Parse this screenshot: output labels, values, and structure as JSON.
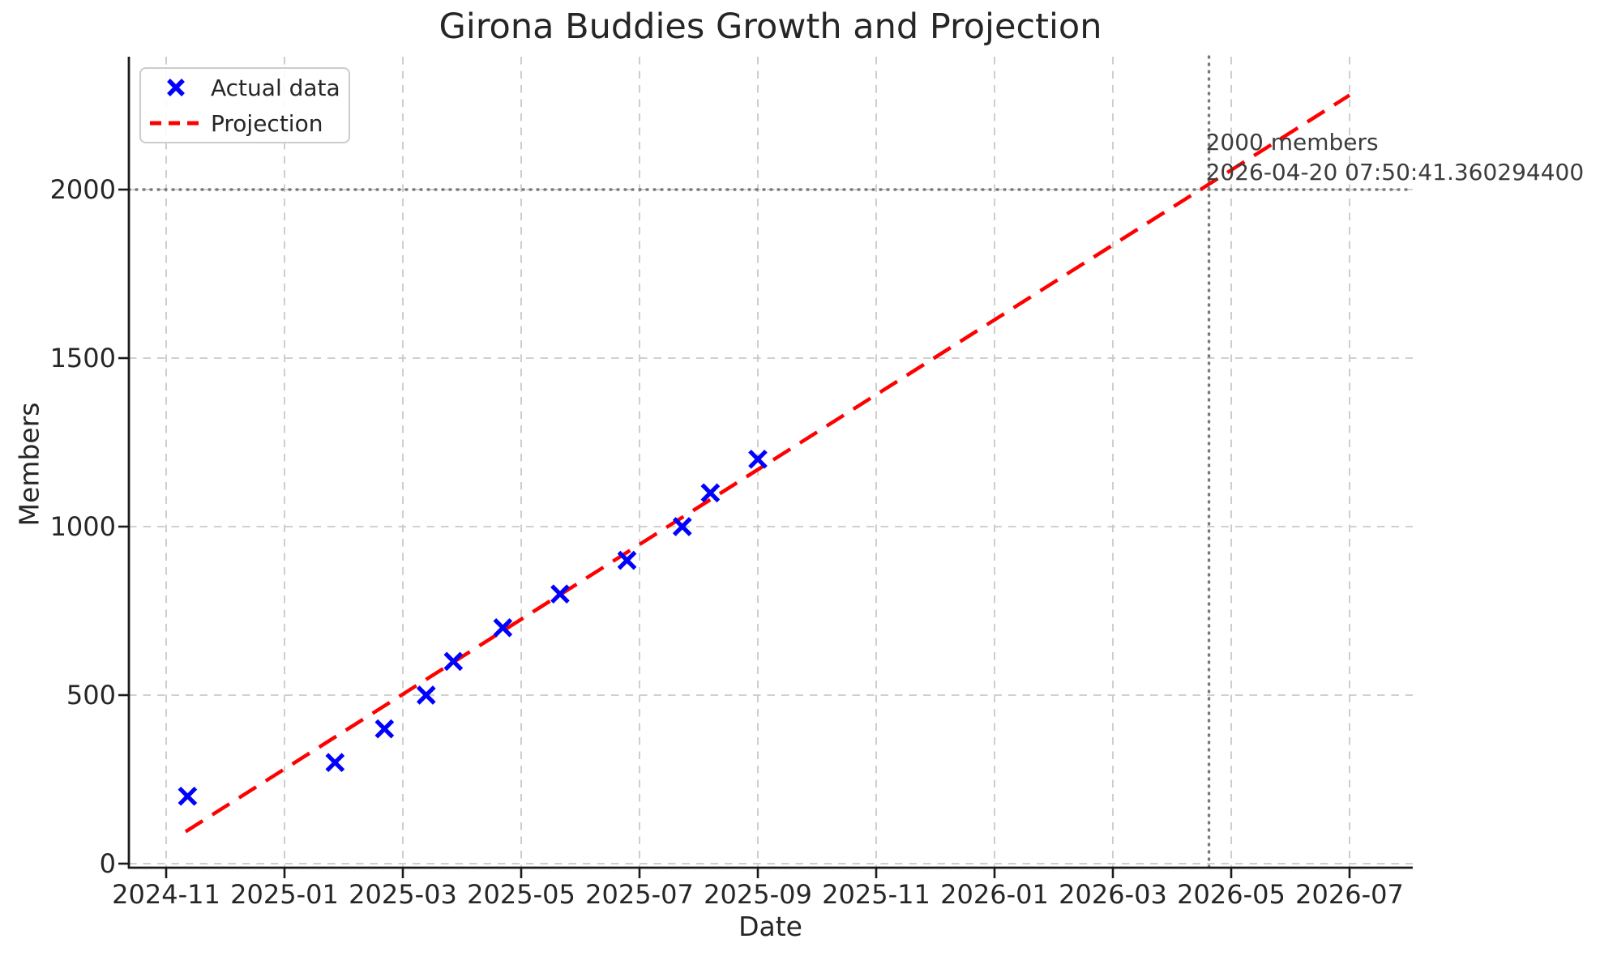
{
  "chart_data": {
    "type": "scatter",
    "title": "Girona Buddies Growth and Projection",
    "xlabel": "Date",
    "ylabel": "Members",
    "grid": true,
    "grid_style": "dashed-light-gray",
    "x_axis": {
      "tick_labels": [
        "2024-11",
        "2025-01",
        "2025-03",
        "2025-05",
        "2025-07",
        "2025-09",
        "2025-11",
        "2026-01",
        "2026-03",
        "2026-05",
        "2026-07"
      ],
      "range": [
        "2024-10-02",
        "2026-07-31"
      ]
    },
    "y_axis": {
      "tick_values": [
        0,
        500,
        1000,
        1500,
        2000
      ],
      "range": [
        -15,
        2395
      ]
    },
    "legend": {
      "position": "upper left",
      "entries": [
        {
          "label": "Actual data",
          "marker": "x",
          "color": "#0000ff"
        },
        {
          "label": "Projection",
          "linestyle": "dashed",
          "color": "#ff0000"
        }
      ]
    },
    "series": [
      {
        "name": "Actual data",
        "type": "scatter",
        "marker": "x",
        "color": "#0000ff",
        "points": [
          {
            "date": "2024-11-12",
            "members": 200
          },
          {
            "date": "2025-01-27",
            "members": 300
          },
          {
            "date": "2025-02-22",
            "members": 400
          },
          {
            "date": "2025-03-13",
            "members": 500
          },
          {
            "date": "2025-03-27",
            "members": 600
          },
          {
            "date": "2025-04-22",
            "members": 700
          },
          {
            "date": "2025-05-21",
            "members": 800
          },
          {
            "date": "2025-06-25",
            "members": 900
          },
          {
            "date": "2025-07-23",
            "members": 1000
          },
          {
            "date": "2025-08-07",
            "members": 1100
          },
          {
            "date": "2025-09-01",
            "members": 1200
          }
        ]
      },
      {
        "name": "Projection",
        "type": "line",
        "linestyle": "dashed",
        "color": "#ff0000",
        "endpoints": [
          {
            "date": "2024-11-11",
            "members": 95
          },
          {
            "date": "2026-07-01",
            "members": 2280
          }
        ]
      }
    ],
    "annotation": {
      "line1": "2000 members",
      "line2": "2026-04-20 07:50:41.360294400",
      "target_date": "2026-04-20",
      "target_members": 2000,
      "crosshair_color": "#7a7a7a",
      "crosshair_style": "dotted"
    },
    "colors": {
      "actual": "#0000ff",
      "projection": "#ff0000",
      "gridline": "#c9c9c9",
      "spine": "#1a1a1a",
      "tick_label": "#262626",
      "annotation_text": "#3c3c3c"
    }
  }
}
